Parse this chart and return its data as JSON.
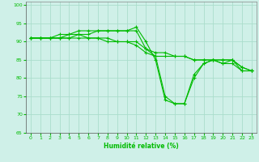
{
  "title": "",
  "xlabel": "Humidité relative (%)",
  "ylabel": "",
  "bg_color": "#cff0e8",
  "grid_color": "#aaddcc",
  "line_color": "#00bb00",
  "xlim": [
    -0.5,
    23.5
  ],
  "ylim": [
    65,
    101
  ],
  "yticks": [
    65,
    70,
    75,
    80,
    85,
    90,
    95,
    100
  ],
  "xticks": [
    0,
    1,
    2,
    3,
    4,
    5,
    6,
    7,
    8,
    9,
    10,
    11,
    12,
    13,
    14,
    15,
    16,
    17,
    18,
    19,
    20,
    21,
    22,
    23
  ],
  "series": [
    [
      91,
      91,
      91,
      91,
      92,
      92,
      92,
      93,
      93,
      93,
      93,
      94,
      90,
      85,
      74,
      73,
      73,
      81,
      84,
      85,
      84,
      85,
      82,
      82
    ],
    [
      91,
      91,
      91,
      92,
      92,
      93,
      93,
      93,
      93,
      93,
      93,
      93,
      88,
      86,
      75,
      73,
      73,
      80,
      84,
      85,
      84,
      84,
      82,
      82
    ],
    [
      91,
      91,
      91,
      91,
      91,
      92,
      91,
      91,
      91,
      90,
      90,
      89,
      87,
      86,
      86,
      86,
      86,
      85,
      85,
      85,
      85,
      85,
      83,
      82
    ],
    [
      91,
      91,
      91,
      91,
      91,
      91,
      91,
      91,
      90,
      90,
      90,
      90,
      88,
      87,
      87,
      86,
      86,
      85,
      85,
      85,
      85,
      85,
      83,
      82
    ]
  ]
}
